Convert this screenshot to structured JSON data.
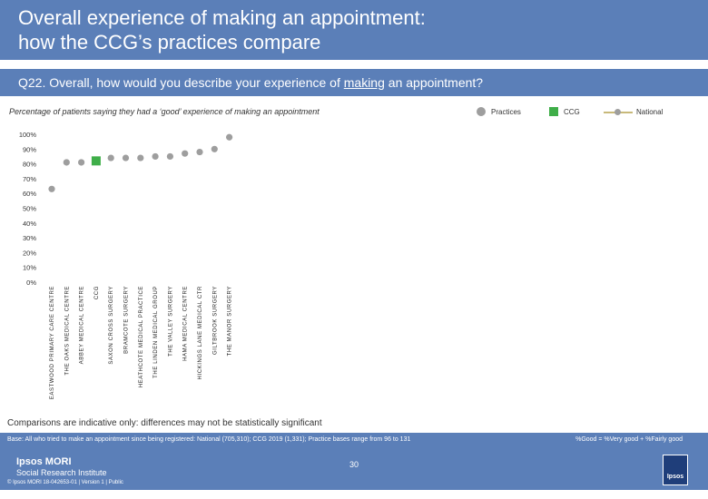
{
  "header": {
    "title": "Overall experience of making an appointment:\nhow the CCG’s practices compare"
  },
  "question": {
    "prefix": "Q22. Overall, how would you describe your experience of ",
    "underlined": "making",
    "suffix": " an appointment?"
  },
  "subtitle": "Percentage of patients saying they had a ‘good’ experience of making an appointment",
  "legend": {
    "practices": "Practices",
    "ccg": "CCG",
    "national": "National"
  },
  "colors": {
    "header": "#5b7fb8",
    "practices": "#9e9e9e",
    "ccg": "#3fae49",
    "national": "#c8b97a"
  },
  "chart_data": {
    "type": "scatter",
    "ylim": [
      0,
      100
    ],
    "yticks": [
      "0%",
      "10%",
      "20%",
      "30%",
      "40%",
      "50%",
      "60%",
      "70%",
      "80%",
      "90%",
      "100%"
    ],
    "categories": [
      "EASTWOOD PRIMARY CARE CENTRE",
      "THE OAKS MEDICAL CENTRE",
      "ABBEY MEDICAL CENTRE",
      "CCG",
      "SAXON CROSS SURGERY",
      "BRAMCOTE SURGERY",
      "HEATHCOTE MEDICAL PRACTICE",
      "THE LINDEN MEDICAL GROUP",
      "THE VALLEY SURGERY",
      "HAMA MEDICAL CENTRE",
      "HICKINGS LANE MEDICAL CTR",
      "GILTBROOK SURGERY",
      "THE MANOR SURGERY"
    ],
    "values": [
      63,
      81,
      81,
      82,
      84,
      84,
      84,
      85,
      85,
      87,
      88,
      90,
      98
    ],
    "types": [
      "practice",
      "practice",
      "practice",
      "ccg",
      "practice",
      "practice",
      "practice",
      "practice",
      "practice",
      "practice",
      "practice",
      "practice",
      "practice"
    ],
    "grid": false
  },
  "notes": {
    "comparison": "Comparisons are indicative only: differences may not be statistically significant",
    "base": "Base: All who tried to make an appointment since being registered: National (705,310); CCG 2019 (1,331); Practice bases range from 96 to 131",
    "good_def": "%Good = %Very good + %Fairly good",
    "logo_line1": "Ipsos MORI",
    "logo_line2": "Social Research Institute",
    "page_number": "30",
    "copyright": "© Ipsos MORI     18-042653-01 | Version 1 | Public",
    "badge": "Ipsos"
  }
}
